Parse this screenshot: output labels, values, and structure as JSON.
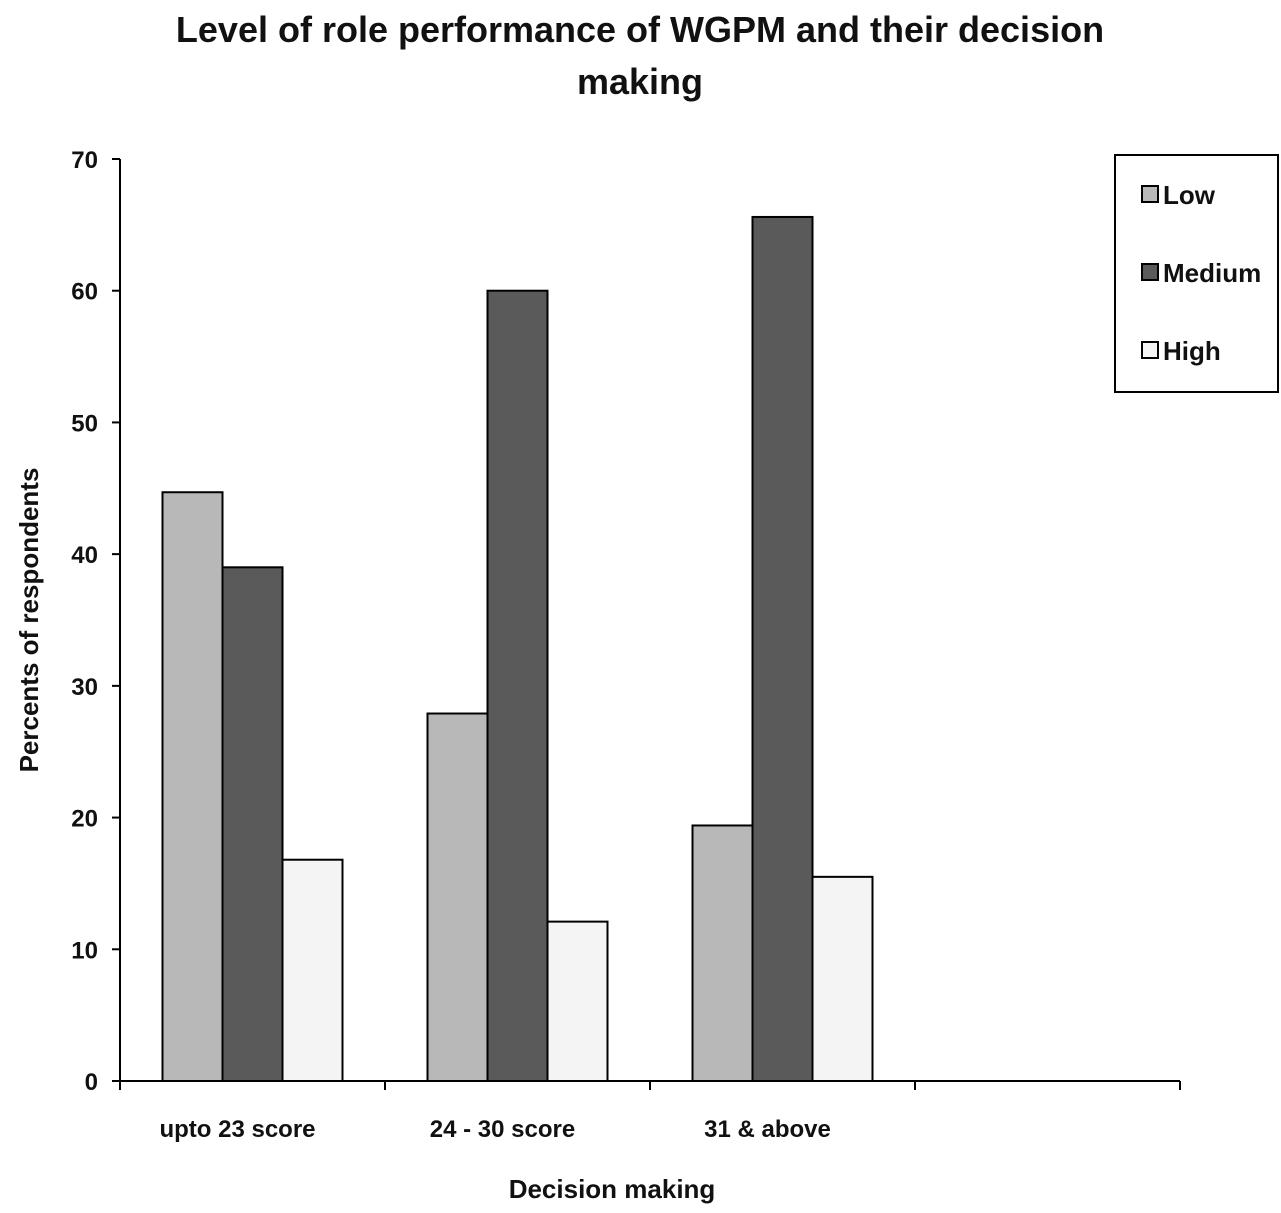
{
  "chart_data": {
    "type": "bar",
    "title": "Level of role performance of WGPM and their decision making",
    "x_label": "Decision making",
    "y_label": "Percents of respondents",
    "categories": [
      "upto 23 score",
      "24 - 30 score",
      "31 & above",
      null
    ],
    "series": [
      {
        "name": "Low",
        "color": "#b8b8b8",
        "values": [
          44.7,
          27.9,
          19.4,
          null
        ]
      },
      {
        "name": "Medium",
        "color": "#5a5a5a",
        "values": [
          39,
          60,
          65.6,
          null
        ]
      },
      {
        "name": "High",
        "color": "#f4f4f4",
        "values": [
          16.8,
          12.1,
          15.5,
          null
        ]
      }
    ],
    "ylim": [
      0,
      70
    ],
    "yticks": [
      0,
      10,
      20,
      30,
      40,
      50,
      60,
      70
    ],
    "legend": "top-right"
  }
}
